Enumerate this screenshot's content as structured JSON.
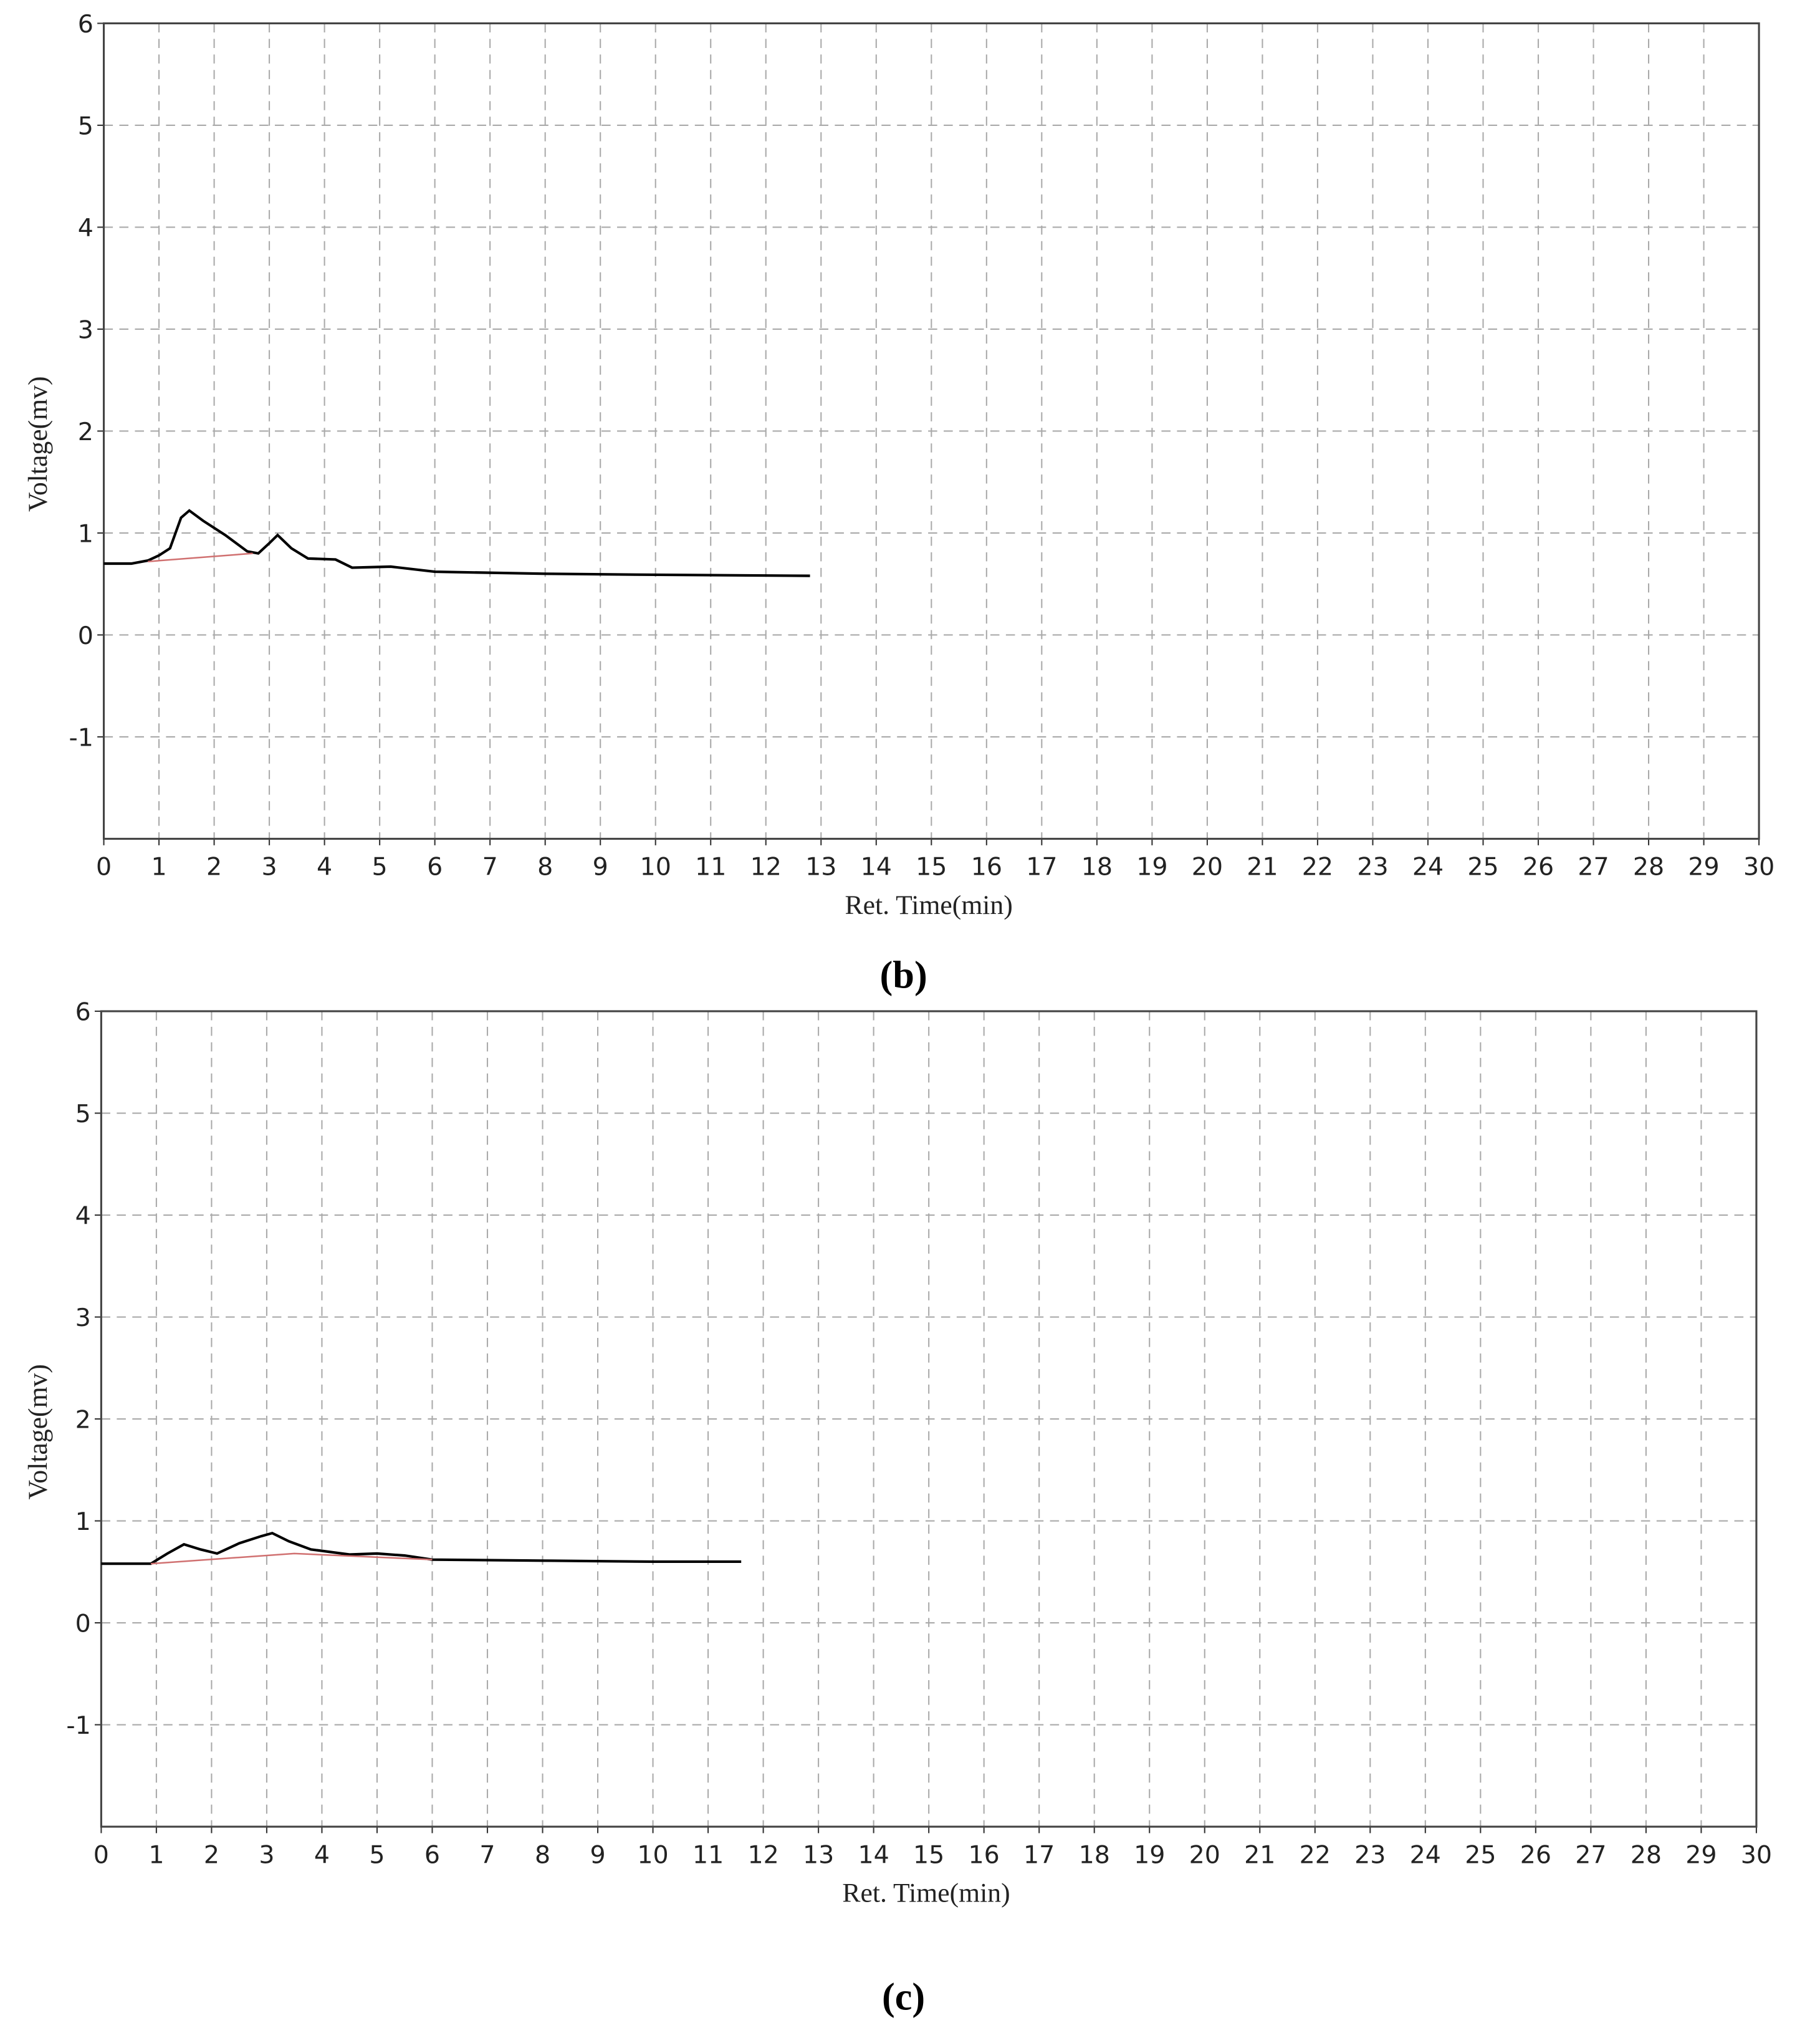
{
  "chart_data": [
    {
      "type": "line",
      "caption": "(b)",
      "x_label": "Ret. Time(min)",
      "y_label": "Voltage(mv)",
      "xlim": [
        0,
        30
      ],
      "ylim": [
        -2,
        6
      ],
      "xticks": [
        0,
        1,
        2,
        3,
        4,
        5,
        6,
        7,
        8,
        9,
        10,
        11,
        12,
        13,
        14,
        15,
        16,
        17,
        18,
        19,
        20,
        21,
        22,
        23,
        24,
        25,
        26,
        27,
        28,
        29,
        30
      ],
      "yticks": [
        -1,
        0,
        1,
        2,
        3,
        4,
        5,
        6
      ],
      "grid": true,
      "series": [
        {
          "color": "#000000",
          "x": [
            0,
            0.5,
            0.8,
            1.0,
            1.2,
            1.4,
            1.55,
            1.8,
            2.2,
            2.6,
            2.8,
            3.0,
            3.15,
            3.4,
            3.7,
            4.2,
            4.5,
            5.2,
            6,
            8,
            10,
            12.8
          ],
          "values": [
            0.7,
            0.7,
            0.73,
            0.78,
            0.85,
            1.15,
            1.22,
            1.12,
            0.98,
            0.82,
            0.8,
            0.9,
            0.98,
            0.85,
            0.75,
            0.74,
            0.66,
            0.67,
            0.62,
            0.6,
            0.59,
            0.58
          ]
        },
        {
          "color": "#d07070",
          "x": [
            0.8,
            2.7
          ],
          "values": [
            0.72,
            0.8
          ]
        }
      ]
    },
    {
      "type": "line",
      "caption": "(c)",
      "x_label": "Ret. Time(min)",
      "y_label": "Voltage(mv)",
      "xlim": [
        0,
        30
      ],
      "ylim": [
        -2,
        6
      ],
      "xticks": [
        0,
        1,
        2,
        3,
        4,
        5,
        6,
        7,
        8,
        9,
        10,
        11,
        12,
        13,
        14,
        15,
        16,
        17,
        18,
        19,
        20,
        21,
        22,
        23,
        24,
        25,
        26,
        27,
        28,
        29,
        30
      ],
      "yticks": [
        -1,
        0,
        1,
        2,
        3,
        4,
        5,
        6
      ],
      "grid": true,
      "series": [
        {
          "color": "#000000",
          "x": [
            0,
            0.9,
            1.2,
            1.5,
            1.8,
            2.1,
            2.5,
            2.9,
            3.1,
            3.4,
            3.8,
            4.5,
            5.0,
            5.5,
            6,
            8,
            10,
            11.6
          ],
          "values": [
            0.58,
            0.58,
            0.68,
            0.77,
            0.72,
            0.68,
            0.78,
            0.85,
            0.88,
            0.8,
            0.72,
            0.67,
            0.68,
            0.66,
            0.62,
            0.61,
            0.6,
            0.6
          ]
        },
        {
          "color": "#d07070",
          "x": [
            0.9,
            3.5,
            6
          ],
          "values": [
            0.58,
            0.68,
            0.62
          ]
        }
      ]
    }
  ]
}
